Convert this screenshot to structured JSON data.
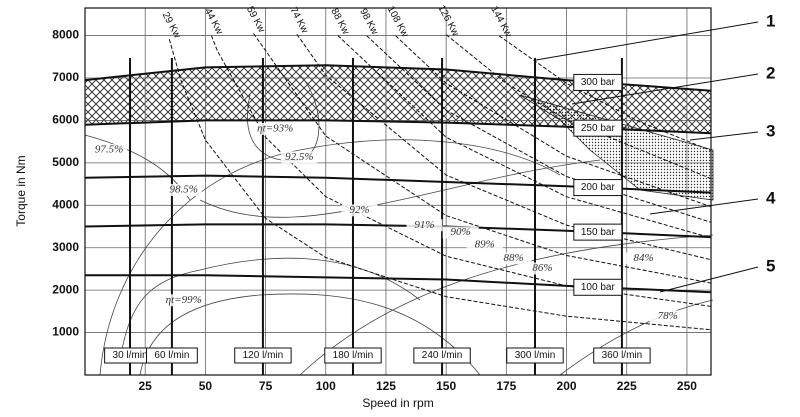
{
  "chart_data": {
    "type": "performance-map",
    "x_label": "Speed in rpm",
    "y_label": "Torque in Nm",
    "xlim": [
      0,
      260
    ],
    "ylim": [
      0,
      8650
    ],
    "xticks": [
      25,
      50,
      75,
      100,
      125,
      150,
      175,
      200,
      225,
      250
    ],
    "yticks": [
      1000,
      2000,
      3000,
      4000,
      5000,
      6000,
      7000,
      8000
    ],
    "grid": true,
    "pressure_lines": [
      {
        "name": "300 bar",
        "x": [
          0,
          50,
          100,
          150,
          200,
          260
        ],
        "values": [
          6950,
          7250,
          7300,
          7200,
          6950,
          6700
        ]
      },
      {
        "name": "250 bar",
        "x": [
          0,
          50,
          100,
          150,
          200,
          260
        ],
        "values": [
          5900,
          6000,
          6000,
          5950,
          5850,
          5700
        ]
      },
      {
        "name": "200 bar",
        "x": [
          0,
          50,
          100,
          150,
          200,
          260
        ],
        "values": [
          4650,
          4700,
          4650,
          4550,
          4450,
          4300
        ]
      },
      {
        "name": "150 bar",
        "x": [
          0,
          50,
          100,
          150,
          200,
          260
        ],
        "values": [
          3500,
          3550,
          3550,
          3500,
          3400,
          3250
        ]
      },
      {
        "name": "100 bar",
        "x": [
          0,
          50,
          100,
          150,
          200,
          260
        ],
        "values": [
          2350,
          2350,
          2300,
          2250,
          2100,
          1950
        ]
      }
    ],
    "power_curves": [
      {
        "name": "29 Kw",
        "x": [
          35,
          40,
          50,
          75,
          100,
          150,
          200,
          260
        ],
        "values": [
          7912,
          6923,
          5538,
          3692,
          2769,
          1846,
          1385,
          1065
        ]
      },
      {
        "name": "44 Kw",
        "x": [
          52.5,
          55,
          75,
          100,
          150,
          200,
          260
        ],
        "values": [
          8003,
          7639,
          5602,
          4202,
          2801,
          2101,
          1616
        ]
      },
      {
        "name": "59 Kw",
        "x": [
          70,
          100,
          150,
          200,
          260
        ],
        "values": [
          8048,
          5634,
          3756,
          2817,
          2167
        ]
      },
      {
        "name": "74 Kw",
        "x": [
          88,
          100,
          150,
          200,
          260
        ],
        "values": [
          8030,
          7066,
          4711,
          3533,
          2718
        ]
      },
      {
        "name": "88 Kw",
        "x": [
          105,
          150,
          200,
          260
        ],
        "values": [
          8003,
          5602,
          4202,
          3232
        ]
      },
      {
        "name": "98 Kw",
        "x": [
          117,
          150,
          200,
          260
        ],
        "values": [
          7998,
          6239,
          4679,
          3599
        ]
      },
      {
        "name": "108 Kw",
        "x": [
          129,
          150,
          200,
          260
        ],
        "values": [
          7995,
          6875,
          5156,
          3967
        ]
      },
      {
        "name": "126 Kw",
        "x": [
          150,
          175,
          200,
          260
        ],
        "values": [
          8021,
          6875,
          6016,
          4628
        ]
      },
      {
        "name": "144 Kw",
        "x": [
          172,
          200,
          230,
          260
        ],
        "values": [
          7995,
          6875,
          5978,
          5289
        ]
      }
    ],
    "flow_lines": [
      {
        "name": "30 l/min",
        "x": 18.7
      },
      {
        "name": "60 l/min",
        "x": 36.1
      },
      {
        "name": "120 l/min",
        "x": 73.9
      },
      {
        "name": "180 l/min",
        "x": 111.3
      },
      {
        "name": "240 l/min",
        "x": 148.3
      },
      {
        "name": "300 l/min",
        "x": 186.9
      },
      {
        "name": "360 l/min",
        "x": 223
      }
    ],
    "efficiency_labels": [
      {
        "text": "97.5%",
        "x": 10,
        "y": 5300
      },
      {
        "text": "ηt=93%",
        "x": 79,
        "y": 5800
      },
      {
        "text": "92.5%",
        "x": 89,
        "y": 5130
      },
      {
        "text": "98.5%",
        "x": 41,
        "y": 4360
      },
      {
        "text": "92%",
        "x": 114,
        "y": 3880
      },
      {
        "text": "91%",
        "x": 141,
        "y": 3530
      },
      {
        "text": "90%",
        "x": 156,
        "y": 3360
      },
      {
        "text": "89%",
        "x": 166,
        "y": 3060
      },
      {
        "text": "88%",
        "x": 178,
        "y": 2750
      },
      {
        "text": "86%",
        "x": 190,
        "y": 2510
      },
      {
        "text": "84%",
        "x": 232,
        "y": 2750
      },
      {
        "text": "78%",
        "x": 242,
        "y": 1380
      },
      {
        "text": "ηt=99%",
        "x": 41,
        "y": 1760
      }
    ],
    "callouts": [
      "1",
      "2",
      "3",
      "4",
      "5"
    ]
  }
}
